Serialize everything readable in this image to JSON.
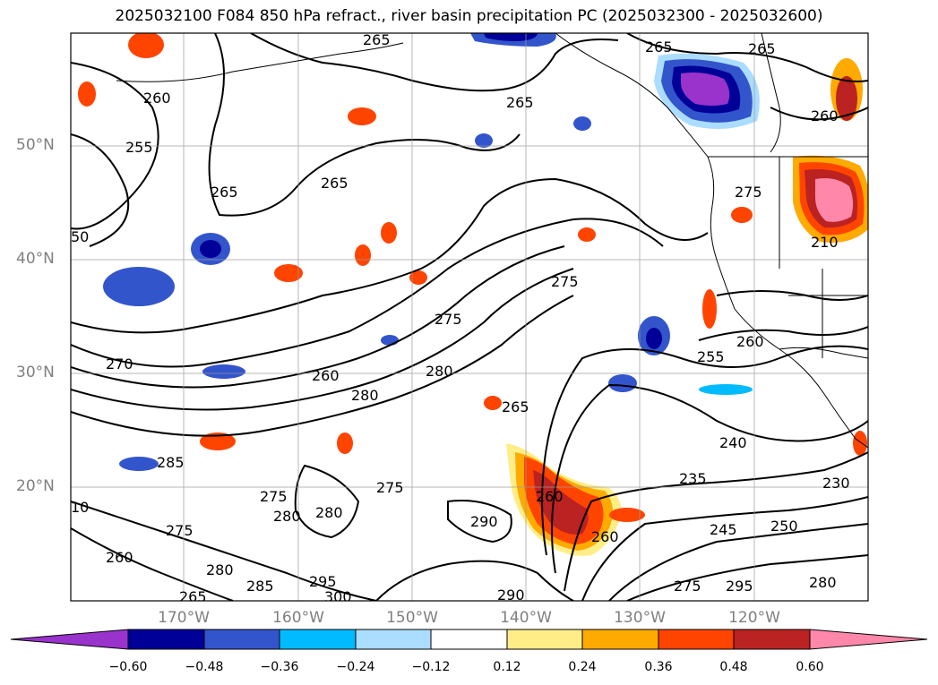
{
  "title": "2025032100 F084 850 hPa refract., river basin precipitation PC (2025032300 - 2025032600)",
  "latitude_labels": [
    "50°N",
    "40°N",
    "30°N",
    "20°N"
  ],
  "longitude_labels": [
    "170°W",
    "160°W",
    "150°W",
    "140°W",
    "130°W",
    "120°W"
  ],
  "colorbar": {
    "ticks": [
      "−0.60",
      "−0.48",
      "−0.36",
      "−0.24",
      "−0.12",
      "0.12",
      "0.24",
      "0.36",
      "0.48",
      "0.60"
    ],
    "colors": [
      "#9933cc",
      "#000099",
      "#3355cc",
      "#00bbff",
      "#aaddff",
      "#ffffff",
      "#ffee88",
      "#ffaa00",
      "#ff4400",
      "#bb2222",
      "#ff88aa"
    ],
    "extend": "both"
  },
  "contour_labels": [
    "265",
    "265",
    "265",
    "260",
    "255",
    "265",
    "265",
    "260",
    "50",
    "270",
    "275",
    "260",
    "280",
    "280",
    "275",
    "285",
    "275",
    "280",
    "280",
    "275",
    "290",
    "295",
    "300",
    "285",
    "280",
    "275",
    "260",
    "265",
    "265",
    "275",
    "255",
    "260",
    "240",
    "235",
    "245",
    "250",
    "230",
    "210",
    "295",
    "275",
    "260",
    "290",
    "280",
    "260",
    "265",
    "10"
  ],
  "colors": {
    "contour": "#000000",
    "grid": "#999999",
    "axis_label": "#7f7f7f",
    "coastline": "#000000"
  }
}
